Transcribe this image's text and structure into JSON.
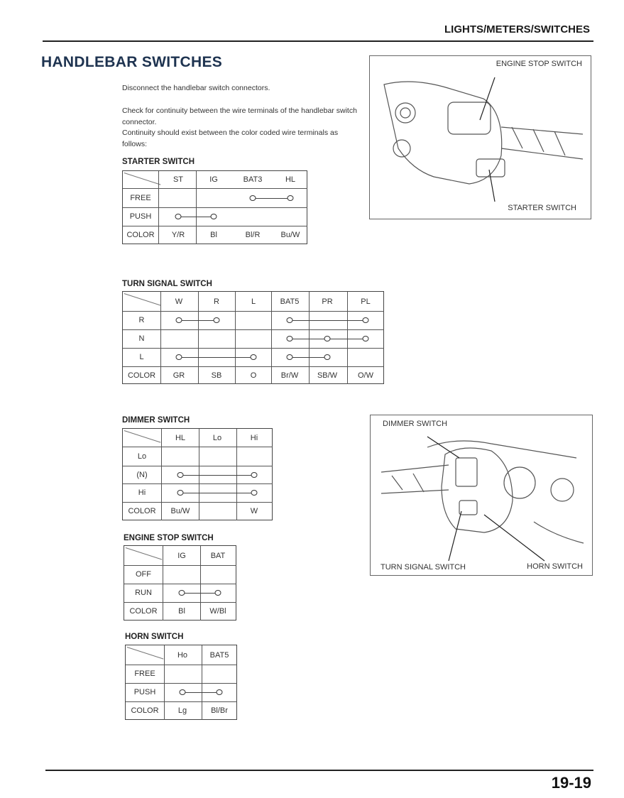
{
  "header": {
    "section": "LIGHTS/METERS/SWITCHES",
    "title": "HANDLEBAR SWITCHES"
  },
  "instructions": [
    "Disconnect the handlebar switch connectors.",
    "Check for continuity between the wire terminals of the handlebar switch connector.",
    "Continuity should exist between the color coded wire terminals as follows:"
  ],
  "tables": [
    {
      "title": "STARTER SWITCH",
      "columns": [
        "ST",
        "IG",
        "BAT3",
        "HL"
      ],
      "rows": [
        {
          "label": "FREE",
          "links": [
            [
              2,
              3
            ]
          ]
        },
        {
          "label": "PUSH",
          "links": [
            [
              0,
              1
            ]
          ]
        }
      ],
      "colors_label": "COLOR",
      "colors": [
        "Y/R",
        "Bl",
        "Bl/R",
        "Bu/W"
      ]
    },
    {
      "title": "TURN SIGNAL SWITCH",
      "columns": [
        "W",
        "R",
        "L",
        "BAT5",
        "PR",
        "PL"
      ],
      "rows": [
        {
          "label": "R",
          "links": [
            [
              0,
              1
            ],
            [
              3,
              5
            ]
          ]
        },
        {
          "label": "N",
          "links": [
            [
              3,
              4,
              5
            ]
          ]
        },
        {
          "label": "L",
          "links": [
            [
              0,
              2
            ],
            [
              3,
              4
            ]
          ]
        }
      ],
      "colors_label": "COLOR",
      "colors": [
        "GR",
        "SB",
        "O",
        "Br/W",
        "SB/W",
        "O/W"
      ]
    },
    {
      "title": "DIMMER SWITCH",
      "columns": [
        "HL",
        "Lo",
        "Hi"
      ],
      "rows": [
        {
          "label": "Lo",
          "links": []
        },
        {
          "label": "(N)",
          "links": [
            [
              0,
              2
            ]
          ]
        },
        {
          "label": "Hi",
          "links": [
            [
              0,
              2
            ]
          ]
        }
      ],
      "colors_label": "COLOR",
      "colors": [
        "Bu/W",
        "",
        "W"
      ]
    },
    {
      "title": "ENGINE STOP SWITCH",
      "columns": [
        "IG",
        "BAT"
      ],
      "rows": [
        {
          "label": "OFF",
          "links": []
        },
        {
          "label": "RUN",
          "links": [
            [
              0,
              1
            ]
          ]
        }
      ],
      "colors_label": "COLOR",
      "colors": [
        "Bl",
        "W/Bl"
      ]
    },
    {
      "title": "HORN SWITCH",
      "columns": [
        "Ho",
        "BAT5"
      ],
      "rows": [
        {
          "label": "FREE",
          "links": []
        },
        {
          "label": "PUSH",
          "links": [
            [
              0,
              1
            ]
          ]
        }
      ],
      "colors_label": "COLOR",
      "colors": [
        "Lg",
        "Bl/Br"
      ]
    }
  ],
  "figures": [
    {
      "labels": [
        "ENGINE STOP SWITCH",
        "STARTER SWITCH"
      ]
    },
    {
      "labels": [
        "DIMMER SWITCH",
        "TURN SIGNAL SWITCH",
        "HORN SWITCH"
      ]
    }
  ],
  "footer": {
    "page_number": "19-19"
  }
}
